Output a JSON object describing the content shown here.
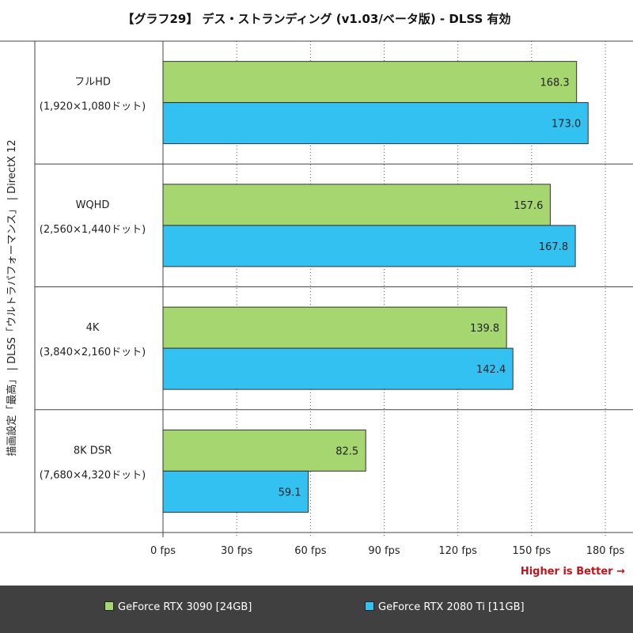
{
  "chart_data": {
    "type": "bar",
    "orientation": "horizontal",
    "title": "【グラフ29】 デス・ストランディング (v1.03/ベータ版) - DLSS 有効",
    "ylabel": "描画設定「最高」 | DLSS「ウルトラパフォーマンス」 | DirectX 12",
    "categories": [
      {
        "name": "フルHD",
        "sub": "(1,920×1,080ドット)"
      },
      {
        "name": "WQHD",
        "sub": "(2,560×1,440ドット)"
      },
      {
        "name": "4K",
        "sub": "(3,840×2,160ドット)"
      },
      {
        "name": "8K DSR",
        "sub": "(7,680×4,320ドット)"
      }
    ],
    "series": [
      {
        "name": "GeForce RTX 3090 [24GB]",
        "color": "#a5d66f",
        "values": [
          168.3,
          157.6,
          139.8,
          82.5
        ],
        "labels": [
          "168.3",
          "157.6",
          "139.8",
          "82.5"
        ]
      },
      {
        "name": "GeForce RTX 2080 Ti [11GB]",
        "color": "#33c1f2",
        "values": [
          173.0,
          167.8,
          142.4,
          59.1
        ],
        "labels": [
          "173.0",
          "167.8",
          "142.4",
          "59.1"
        ]
      }
    ],
    "xlim": [
      0,
      180
    ],
    "xticks": [
      0,
      30,
      60,
      90,
      120,
      150,
      180
    ],
    "xtick_labels": [
      "0 fps",
      "30 fps",
      "60 fps",
      "90 fps",
      "120 fps",
      "150 fps",
      "180 fps"
    ],
    "grid": true,
    "legend_position": "bottom",
    "annotation": "Higher is Better →",
    "annotation_color": "#c0141c"
  }
}
